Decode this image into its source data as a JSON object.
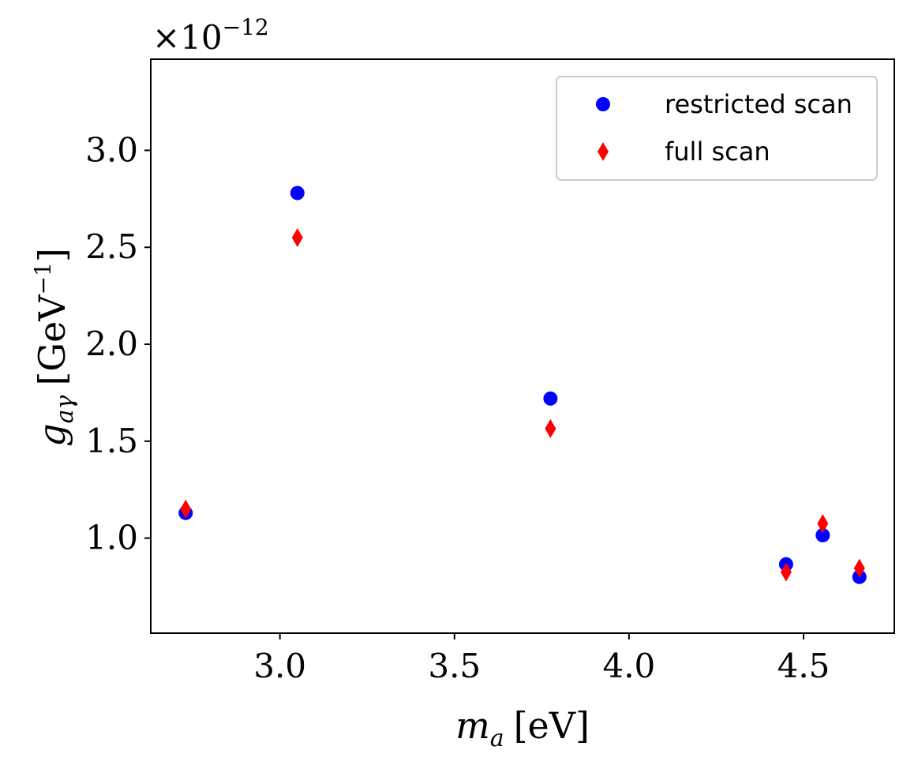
{
  "chart_data": {
    "type": "scatter",
    "xlabel_var": "m",
    "xlabel_sub": "a",
    "xlabel_unit": "[eV]",
    "ylabel_var": "g",
    "ylabel_sub": "aγ",
    "ylabel_unit_base": "[GeV",
    "ylabel_unit_exp": "−1",
    "ylabel_unit_close": "]",
    "offset_base": "×10",
    "offset_exp": "−12",
    "xlim": [
      2.63,
      4.76
    ],
    "ylim": [
      0.51,
      3.47
    ],
    "xticks": [
      3.0,
      3.5,
      4.0,
      4.5
    ],
    "xtick_labels": [
      "3.0",
      "3.5",
      "4.0",
      "4.5"
    ],
    "yticks": [
      1.0,
      1.5,
      2.0,
      2.5,
      3.0
    ],
    "ytick_labels": [
      "1.0",
      "1.5",
      "2.0",
      "2.5",
      "3.0"
    ],
    "legend_position": "top-right",
    "series": [
      {
        "name": "restricted scan",
        "marker": "circle",
        "color": "#0000ff",
        "points": [
          {
            "x": 2.73,
            "y": 1.13
          },
          {
            "x": 3.05,
            "y": 2.78
          },
          {
            "x": 3.775,
            "y": 1.72
          },
          {
            "x": 4.45,
            "y": 0.865
          },
          {
            "x": 4.555,
            "y": 1.015
          },
          {
            "x": 4.66,
            "y": 0.8
          }
        ]
      },
      {
        "name": "full scan",
        "marker": "diamond",
        "color": "#ff0000",
        "points": [
          {
            "x": 2.73,
            "y": 1.15
          },
          {
            "x": 3.05,
            "y": 2.55
          },
          {
            "x": 3.775,
            "y": 1.565
          },
          {
            "x": 4.45,
            "y": 0.825
          },
          {
            "x": 4.555,
            "y": 1.075
          },
          {
            "x": 4.66,
            "y": 0.845
          }
        ]
      }
    ]
  }
}
